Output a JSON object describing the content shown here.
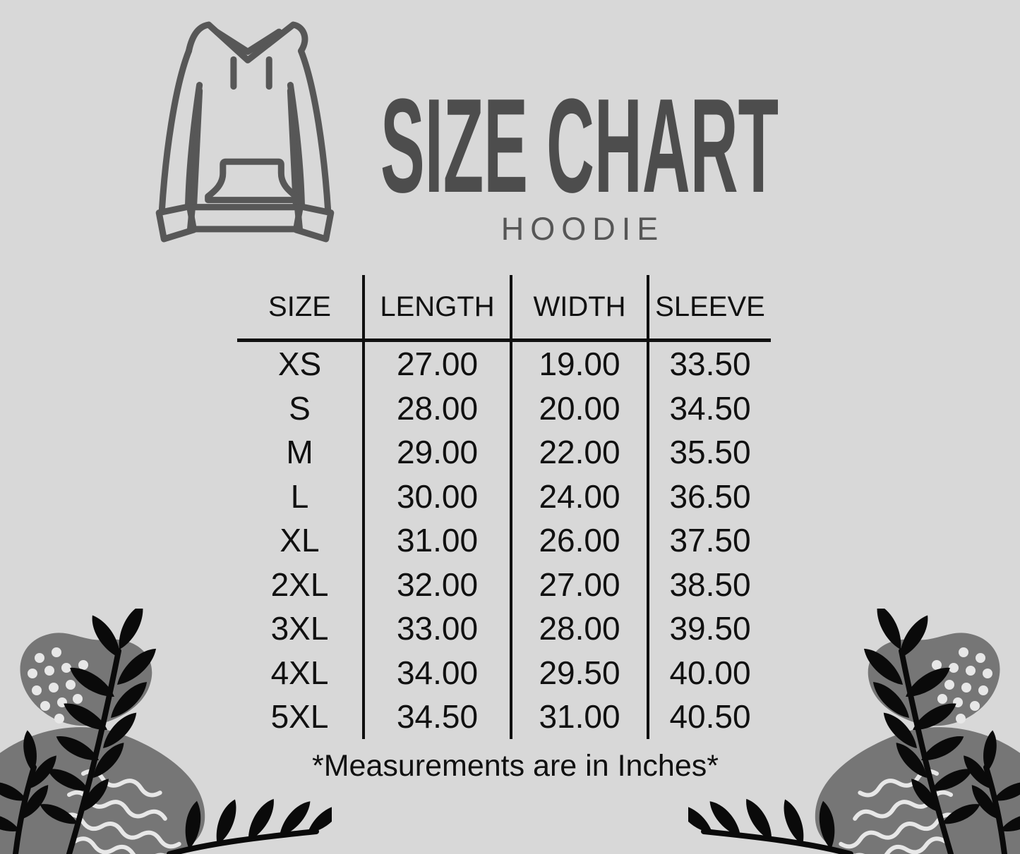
{
  "header": {
    "title": "SIZE CHART",
    "subtitle": "HOODIE"
  },
  "table": {
    "headers": [
      "SIZE",
      "LENGTH",
      "WIDTH",
      "SLEEVE"
    ],
    "rows": [
      [
        "XS",
        "27.00",
        "19.00",
        "33.50"
      ],
      [
        "S",
        "28.00",
        "20.00",
        "34.50"
      ],
      [
        "M",
        "29.00",
        "22.00",
        "35.50"
      ],
      [
        "L",
        "30.00",
        "24.00",
        "36.50"
      ],
      [
        "XL",
        "31.00",
        "26.00",
        "37.50"
      ],
      [
        "2XL",
        "32.00",
        "27.00",
        "38.50"
      ],
      [
        "3XL",
        "33.00",
        "28.00",
        "39.50"
      ],
      [
        "4XL",
        "34.00",
        "29.50",
        "40.00"
      ],
      [
        "5XL",
        "34.50",
        "31.00",
        "40.50"
      ]
    ]
  },
  "footer": {
    "note": "*Measurements are in Inches*"
  },
  "colors": {
    "bg": "#d8d8d8",
    "ink": "#101010",
    "title": "#4d4d4d",
    "subtitle": "#565656",
    "icon": "#575757",
    "blob": "#767676",
    "leaf": "#0a0a0a",
    "accent": "#e7e7e7"
  },
  "chart_data": {
    "type": "table",
    "title": "SIZE CHART",
    "subtitle": "HOODIE",
    "unit": "inches",
    "columns": [
      "SIZE",
      "LENGTH",
      "WIDTH",
      "SLEEVE"
    ],
    "categories": [
      "XS",
      "S",
      "M",
      "L",
      "XL",
      "2XL",
      "3XL",
      "4XL",
      "5XL"
    ],
    "series": [
      {
        "name": "LENGTH",
        "values": [
          27.0,
          28.0,
          29.0,
          30.0,
          31.0,
          32.0,
          33.0,
          34.0,
          34.5
        ]
      },
      {
        "name": "WIDTH",
        "values": [
          19.0,
          20.0,
          22.0,
          24.0,
          26.0,
          27.0,
          28.0,
          29.5,
          31.0
        ]
      },
      {
        "name": "SLEEVE",
        "values": [
          33.5,
          34.5,
          35.5,
          36.5,
          37.5,
          38.5,
          39.5,
          40.0,
          40.5
        ]
      }
    ],
    "note": "*Measurements are in Inches*"
  }
}
